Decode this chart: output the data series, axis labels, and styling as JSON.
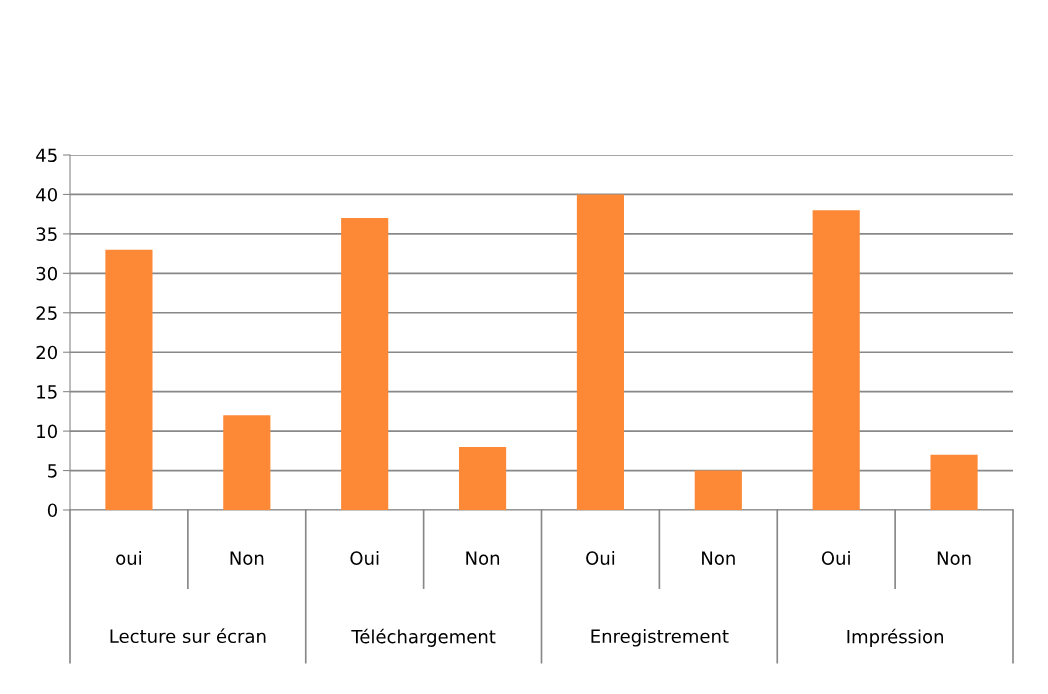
{
  "chart_data": {
    "type": "bar",
    "categories": [
      "oui",
      "Non",
      "Oui",
      "Non",
      "Oui",
      "Non",
      "Oui",
      "Non"
    ],
    "values": [
      33,
      12,
      37,
      8,
      40,
      5,
      38,
      7
    ],
    "color": "#fd8937",
    "annotations": [
      "Lecture sur écran",
      "Téléchargement",
      "Enregistrement",
      "Impréssion"
    ],
    "ylim": [
      0,
      45
    ],
    "yticks": [
      0,
      5,
      10,
      15,
      20,
      25,
      30,
      35,
      40,
      45
    ],
    "grid": "y"
  }
}
